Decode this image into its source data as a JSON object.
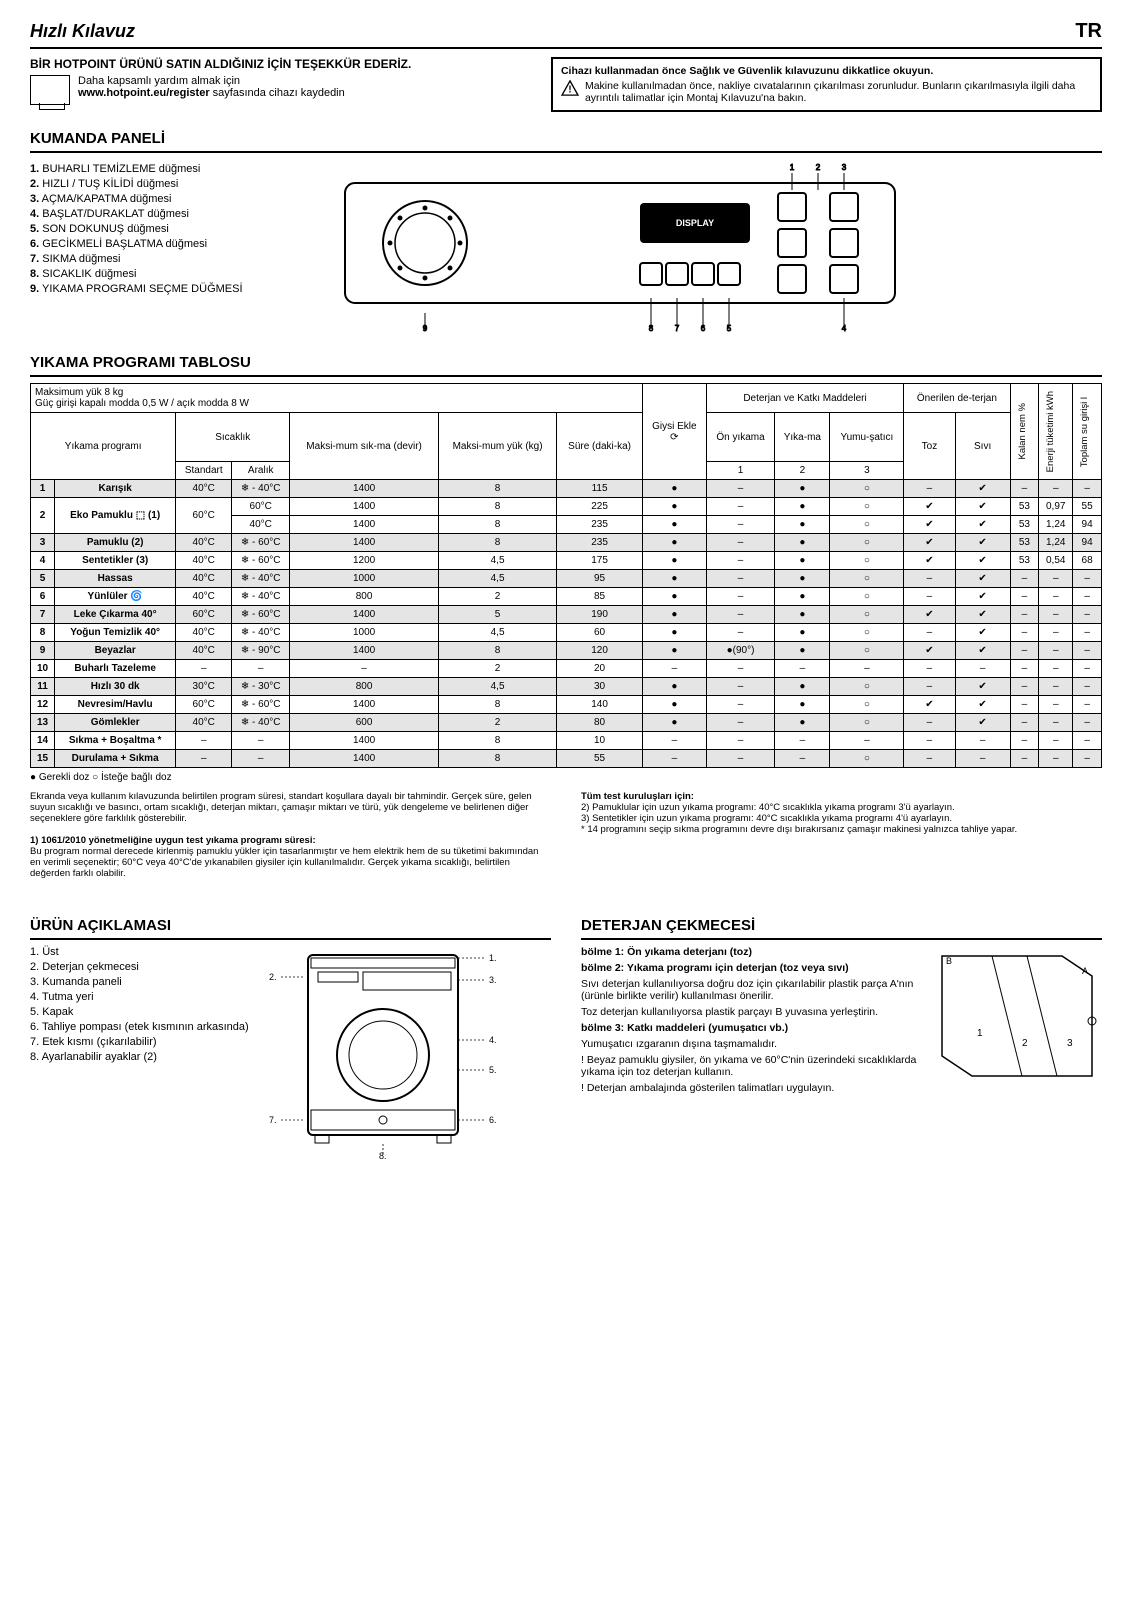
{
  "topbar": {
    "title": "Hızlı Kılavuz",
    "lang": "TR"
  },
  "header": {
    "thanks": "BİR HOTPOINT ÜRÜNÜ SATIN ALDIĞINIZ İÇİN TEŞEKKÜR EDERİZ.",
    "reg1": "Daha kapsamlı yardım almak için",
    "reg2a": "www.hotpoint.eu/register",
    "reg2b": " sayfasında cihazı kaydedin",
    "warn_bold": "Cihazı kullanmadan önce Sağlık ve Güvenlik kılavuzunu dikkatlice okuyun.",
    "warn_txt": "Makine kullanılmadan önce, nakliye cıvatalarının çıkarılması zorunludur. Bunların çıkarılmasıyla ilgili daha ayrıntılı talimatlar için Montaj Kılavuzu'na bakın."
  },
  "kumanda": {
    "title": "KUMANDA PANELİ",
    "items": [
      "BUHARLI TEMİZLEME düğmesi",
      "HIZLI / TUŞ KİLİDİ düğmesi",
      "AÇMA/KAPATMA düğmesi",
      "BAŞLAT/DURAKLAT düğmesi",
      "SON DOKUNUŞ düğmesi",
      "GECİKMELİ BAŞLATMA düğmesi",
      "SIKMA düğmesi",
      "SICAKLIK düğmesi",
      "YIKAMA PROGRAMI SEÇME DÜĞMESİ"
    ],
    "display_label": "DISPLAY"
  },
  "tablo": {
    "title": "YIKAMA PROGRAMI TABLOSU",
    "maxload": "Maksimum yük 8 kg",
    "power": "Güç girişi kapalı modda 0,5 W / açık modda 8 W",
    "head": {
      "prog": "Yıkama programı",
      "sicaklik": "Sıcaklık",
      "std": "Standart",
      "aralik": "Aralık",
      "devir": "Maksi-mum sık-ma (devir)",
      "yuk": "Maksi-mum yük (kg)",
      "sure": "Süre (daki-ka)",
      "giysi": "Giysi Ekle",
      "deterjan": "Deterjan ve Katkı Maddeleri",
      "on": "Ön yıkama",
      "yika": "Yıka-ma",
      "yumu": "Yumu-şatıcı",
      "c1": "1",
      "c2": "2",
      "c3": "3",
      "oneri": "Önerilen de-terjan",
      "toz": "Toz",
      "sivi": "Sıvı",
      "nem": "Kalan nem %",
      "enerji": "Enerji tüketimi kWh",
      "su": "Toplam su girişi l"
    },
    "rows": [
      {
        "n": "1",
        "name": "Karışık",
        "std": "40°C",
        "ara": "❄ - 40°C",
        "dev": "1400",
        "yuk": "8",
        "sure": "115",
        "ge": "●",
        "on": "–",
        "yi": "●",
        "yu": "○",
        "toz": "–",
        "siv": "✔",
        "nem": "–",
        "en": "–",
        "su": "–",
        "shade": true,
        "span": 1
      },
      {
        "n": "2",
        "name": "Eko Pamuklu ⬚ (1)",
        "std": "60°C",
        "ara": "60°C",
        "dev": "1400",
        "yuk": "8",
        "sure": "225",
        "ge": "●",
        "on": "–",
        "yi": "●",
        "yu": "○",
        "toz": "✔",
        "siv": "✔",
        "nem": "53",
        "en": "0,97",
        "su": "55",
        "shade": false,
        "span": 2,
        "sub": {
          "ara": "40°C",
          "dev": "1400",
          "yuk": "8",
          "sure": "235",
          "ge": "●",
          "on": "–",
          "yi": "●",
          "yu": "○",
          "toz": "✔",
          "siv": "✔",
          "nem": "53",
          "en": "1,24",
          "su": "94"
        }
      },
      {
        "n": "3",
        "name": "Pamuklu (2)",
        "std": "40°C",
        "ara": "❄ - 60°C",
        "dev": "1400",
        "yuk": "8",
        "sure": "235",
        "ge": "●",
        "on": "–",
        "yi": "●",
        "yu": "○",
        "toz": "✔",
        "siv": "✔",
        "nem": "53",
        "en": "1,24",
        "su": "94",
        "shade": true,
        "span": 1
      },
      {
        "n": "4",
        "name": "Sentetikler (3)",
        "std": "40°C",
        "ara": "❄ - 60°C",
        "dev": "1200",
        "yuk": "4,5",
        "sure": "175",
        "ge": "●",
        "on": "–",
        "yi": "●",
        "yu": "○",
        "toz": "✔",
        "siv": "✔",
        "nem": "53",
        "en": "0,54",
        "su": "68",
        "shade": false,
        "span": 1
      },
      {
        "n": "5",
        "name": "Hassas",
        "std": "40°C",
        "ara": "❄ - 40°C",
        "dev": "1000",
        "yuk": "4,5",
        "sure": "95",
        "ge": "●",
        "on": "–",
        "yi": "●",
        "yu": "○",
        "toz": "–",
        "siv": "✔",
        "nem": "–",
        "en": "–",
        "su": "–",
        "shade": true,
        "span": 1
      },
      {
        "n": "6",
        "name": "Yünlüler 🌀",
        "std": "40°C",
        "ara": "❄ - 40°C",
        "dev": "800",
        "yuk": "2",
        "sure": "85",
        "ge": "●",
        "on": "–",
        "yi": "●",
        "yu": "○",
        "toz": "–",
        "siv": "✔",
        "nem": "–",
        "en": "–",
        "su": "–",
        "shade": false,
        "span": 1
      },
      {
        "n": "7",
        "name": "Leke Çıkarma 40°",
        "std": "60°C",
        "ara": "❄ - 60°C",
        "dev": "1400",
        "yuk": "5",
        "sure": "190",
        "ge": "●",
        "on": "–",
        "yi": "●",
        "yu": "○",
        "toz": "✔",
        "siv": "✔",
        "nem": "–",
        "en": "–",
        "su": "–",
        "shade": true,
        "span": 1
      },
      {
        "n": "8",
        "name": "Yoğun Temizlik 40°",
        "std": "40°C",
        "ara": "❄ - 40°C",
        "dev": "1000",
        "yuk": "4,5",
        "sure": "60",
        "ge": "●",
        "on": "–",
        "yi": "●",
        "yu": "○",
        "toz": "–",
        "siv": "✔",
        "nem": "–",
        "en": "–",
        "su": "–",
        "shade": false,
        "span": 1
      },
      {
        "n": "9",
        "name": "Beyazlar",
        "std": "40°C",
        "ara": "❄ - 90°C",
        "dev": "1400",
        "yuk": "8",
        "sure": "120",
        "ge": "●",
        "on": "●(90°)",
        "yi": "●",
        "yu": "○",
        "toz": "✔",
        "siv": "✔",
        "nem": "–",
        "en": "–",
        "su": "–",
        "shade": true,
        "span": 1
      },
      {
        "n": "10",
        "name": "Buharlı Tazeleme",
        "std": "–",
        "ara": "–",
        "dev": "–",
        "yuk": "2",
        "sure": "20",
        "ge": "–",
        "on": "–",
        "yi": "–",
        "yu": "–",
        "toz": "–",
        "siv": "–",
        "nem": "–",
        "en": "–",
        "su": "–",
        "shade": false,
        "span": 1
      },
      {
        "n": "11",
        "name": "Hızlı 30 dk",
        "std": "30°C",
        "ara": "❄ - 30°C",
        "dev": "800",
        "yuk": "4,5",
        "sure": "30",
        "ge": "●",
        "on": "–",
        "yi": "●",
        "yu": "○",
        "toz": "–",
        "siv": "✔",
        "nem": "–",
        "en": "–",
        "su": "–",
        "shade": true,
        "span": 1
      },
      {
        "n": "12",
        "name": "Nevresim/Havlu",
        "std": "60°C",
        "ara": "❄ - 60°C",
        "dev": "1400",
        "yuk": "8",
        "sure": "140",
        "ge": "●",
        "on": "–",
        "yi": "●",
        "yu": "○",
        "toz": "✔",
        "siv": "✔",
        "nem": "–",
        "en": "–",
        "su": "–",
        "shade": false,
        "span": 1
      },
      {
        "n": "13",
        "name": "Gömlekler",
        "std": "40°C",
        "ara": "❄ - 40°C",
        "dev": "600",
        "yuk": "2",
        "sure": "80",
        "ge": "●",
        "on": "–",
        "yi": "●",
        "yu": "○",
        "toz": "–",
        "siv": "✔",
        "nem": "–",
        "en": "–",
        "su": "–",
        "shade": true,
        "span": 1
      },
      {
        "n": "14",
        "name": "Sıkma + Boşaltma *",
        "std": "–",
        "ara": "–",
        "dev": "1400",
        "yuk": "8",
        "sure": "10",
        "ge": "–",
        "on": "–",
        "yi": "–",
        "yu": "–",
        "toz": "–",
        "siv": "–",
        "nem": "–",
        "en": "–",
        "su": "–",
        "shade": false,
        "span": 1
      },
      {
        "n": "15",
        "name": "Durulama + Sıkma",
        "std": "–",
        "ara": "–",
        "dev": "1400",
        "yuk": "8",
        "sure": "55",
        "ge": "–",
        "on": "–",
        "yi": "–",
        "yu": "○",
        "toz": "–",
        "siv": "–",
        "nem": "–",
        "en": "–",
        "su": "–",
        "shade": true,
        "span": 1
      }
    ],
    "legend": "● Gerekli doz   ○ İsteğe bağlı doz"
  },
  "notes": {
    "left1": "Ekranda veya kullanım kılavuzunda belirtilen program süresi, standart koşullara dayalı bir tahmindir. Gerçek süre, gelen suyun sıcaklığı ve basıncı, ortam sıcaklığı, deterjan miktarı, çamaşır miktarı ve türü, yük dengeleme ve belirlenen diğer seçeneklere göre farklılık gösterebilir.",
    "left2_head": "1) 1061/2010 yönetmeliğine uygun test yıkama programı süresi:",
    "left2": "Bu program normal derecede kirlenmiş pamuklu yükler için tasarlanmıştır ve hem elektrik hem de su tüketimi bakımından en verimli seçenektir; 60°C veya 40°C'de yıkanabilen giysiler için kullanılmalıdır. Gerçek yıkama sıcaklığı, belirtilen değerden farklı olabilir.",
    "right_head": "Tüm test kuruluşları için:",
    "right1": "2) Pamuklular için uzun yıkama programı: 40°C sıcaklıkla yıkama programı 3'ü ayarlayın.",
    "right2": "3) Sentetikler için uzun yıkama programı: 40°C sıcaklıkla yıkama programı 4'ü ayarlayın.",
    "right3": "* 14 programını seçip sıkma programını devre dışı bırakırsanız çamaşır makinesi yalnızca tahliye yapar."
  },
  "urun": {
    "title": "ÜRÜN AÇIKLAMASI",
    "items": [
      "Üst",
      "Deterjan çekmecesi",
      "Kumanda paneli",
      "Tutma yeri",
      "Kapak",
      "Tahliye pompası (etek kısmının arkasında)",
      "Etek kısmı (çıkarılabilir)",
      "Ayarlanabilir ayaklar (2)"
    ]
  },
  "deterjan": {
    "title": "DETERJAN ÇEKMECESİ",
    "b1": "bölme 1: Ön yıkama deterjanı (toz)",
    "b2": "bölme 2: Yıkama programı için deterjan (toz veya sıvı)",
    "p1": "Sıvı deterjan kullanılıyorsa doğru doz için çıkarılabilir plastik parça A'nın (ürünle birlikte verilir) kullanılması önerilir.",
    "p2": "Toz deterjan kullanılıyorsa plastik parçayı B yuvasına yerleştirin.",
    "b3": "bölme 3: Katkı maddeleri (yumuşatıcı vb.)",
    "p3": "Yumuşatıcı ızgaranın dışına taşmamalıdır.",
    "p4": "! Beyaz pamuklu giysiler, ön yıkama ve 60°C'nin üzerindeki sıcaklıklarda yıkama için toz deterjan kullanın.",
    "p5": "! Deterjan ambalajında gösterilen talimatları uygulayın."
  }
}
